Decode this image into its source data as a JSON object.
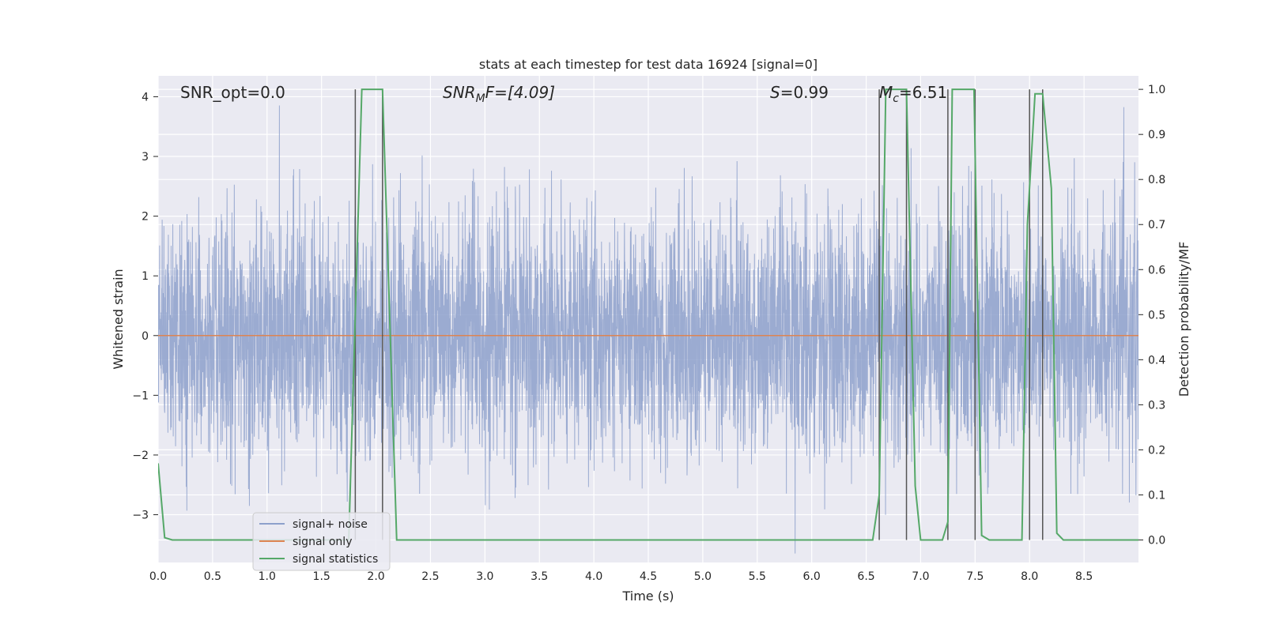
{
  "chart_data": {
    "type": "line",
    "title": "stats at each timestep for test data 16924 [signal=0]",
    "xlabel": "Time (s)",
    "ylabel": "Whitened strain",
    "ylabel_right": "Detection probability/MF",
    "xlim": [
      0,
      9.0
    ],
    "ylim": [
      -3.8,
      4.35
    ],
    "ylim_right": [
      -0.05,
      1.03
    ],
    "x_ticks": [
      "0.0",
      "0.5",
      "1.0",
      "1.5",
      "2.0",
      "2.5",
      "3.0",
      "3.5",
      "4.0",
      "4.5",
      "5.0",
      "5.5",
      "6.0",
      "6.5",
      "7.0",
      "7.5",
      "8.0",
      "8.5"
    ],
    "y_ticks": [
      "4",
      "3",
      "2",
      "1",
      "0",
      "−1",
      "−2",
      "−3"
    ],
    "y_ticks_right": [
      "1.0",
      "0.9",
      "0.8",
      "0.7",
      "0.6",
      "0.5",
      "0.4",
      "0.3",
      "0.2",
      "0.1",
      "0.0"
    ],
    "grid": true,
    "legend_position": "bottom-left",
    "colors": {
      "background": "#eaeaf2",
      "noise": "#8da0cb",
      "signal_only": "#dd8452",
      "statistics": "#55a868",
      "vlines": "#555555"
    },
    "annotations": {
      "snr_opt": "SNR_opt=0.0",
      "snr_mf_main": "SNR",
      "snr_mf_sub": "M",
      "snr_mf_rest": "F=[4.09]",
      "s_label": "S",
      "s_rest": "=0.99",
      "mc_main": "M",
      "mc_sub": "c",
      "mc_rest": "=6.51"
    },
    "series": [
      {
        "name": "signal+ noise",
        "kind": "noise",
        "sample_rate": 512,
        "amplitude_std": 1.0,
        "x_range": [
          0,
          9.0
        ]
      },
      {
        "name": "signal only",
        "kind": "constant",
        "value": 0,
        "x_range": [
          0,
          9.0
        ]
      },
      {
        "name": "signal statistics",
        "axis": "right",
        "x": [
          0,
          0.06,
          0.13,
          1.75,
          1.87,
          2.06,
          2.19,
          6.56,
          6.62,
          6.68,
          6.87,
          6.95,
          7.0,
          7.2,
          7.25,
          7.29,
          7.49,
          7.56,
          7.63,
          7.93,
          7.98,
          8.05,
          8.12,
          8.2,
          8.25,
          8.31,
          9.0
        ],
        "values": [
          0.17,
          0.005,
          0.0,
          0.0,
          1.0,
          1.0,
          0.0,
          0.0,
          0.1,
          1.0,
          1.0,
          0.12,
          0.0,
          0.0,
          0.04,
          1.0,
          1.0,
          0.01,
          0.0,
          0.0,
          0.7,
          0.99,
          0.99,
          0.78,
          0.015,
          0.0,
          0.0
        ]
      }
    ],
    "vlines": [
      1.81,
      2.06,
      6.62,
      6.87,
      7.25,
      7.5,
      8.0,
      8.12
    ]
  }
}
